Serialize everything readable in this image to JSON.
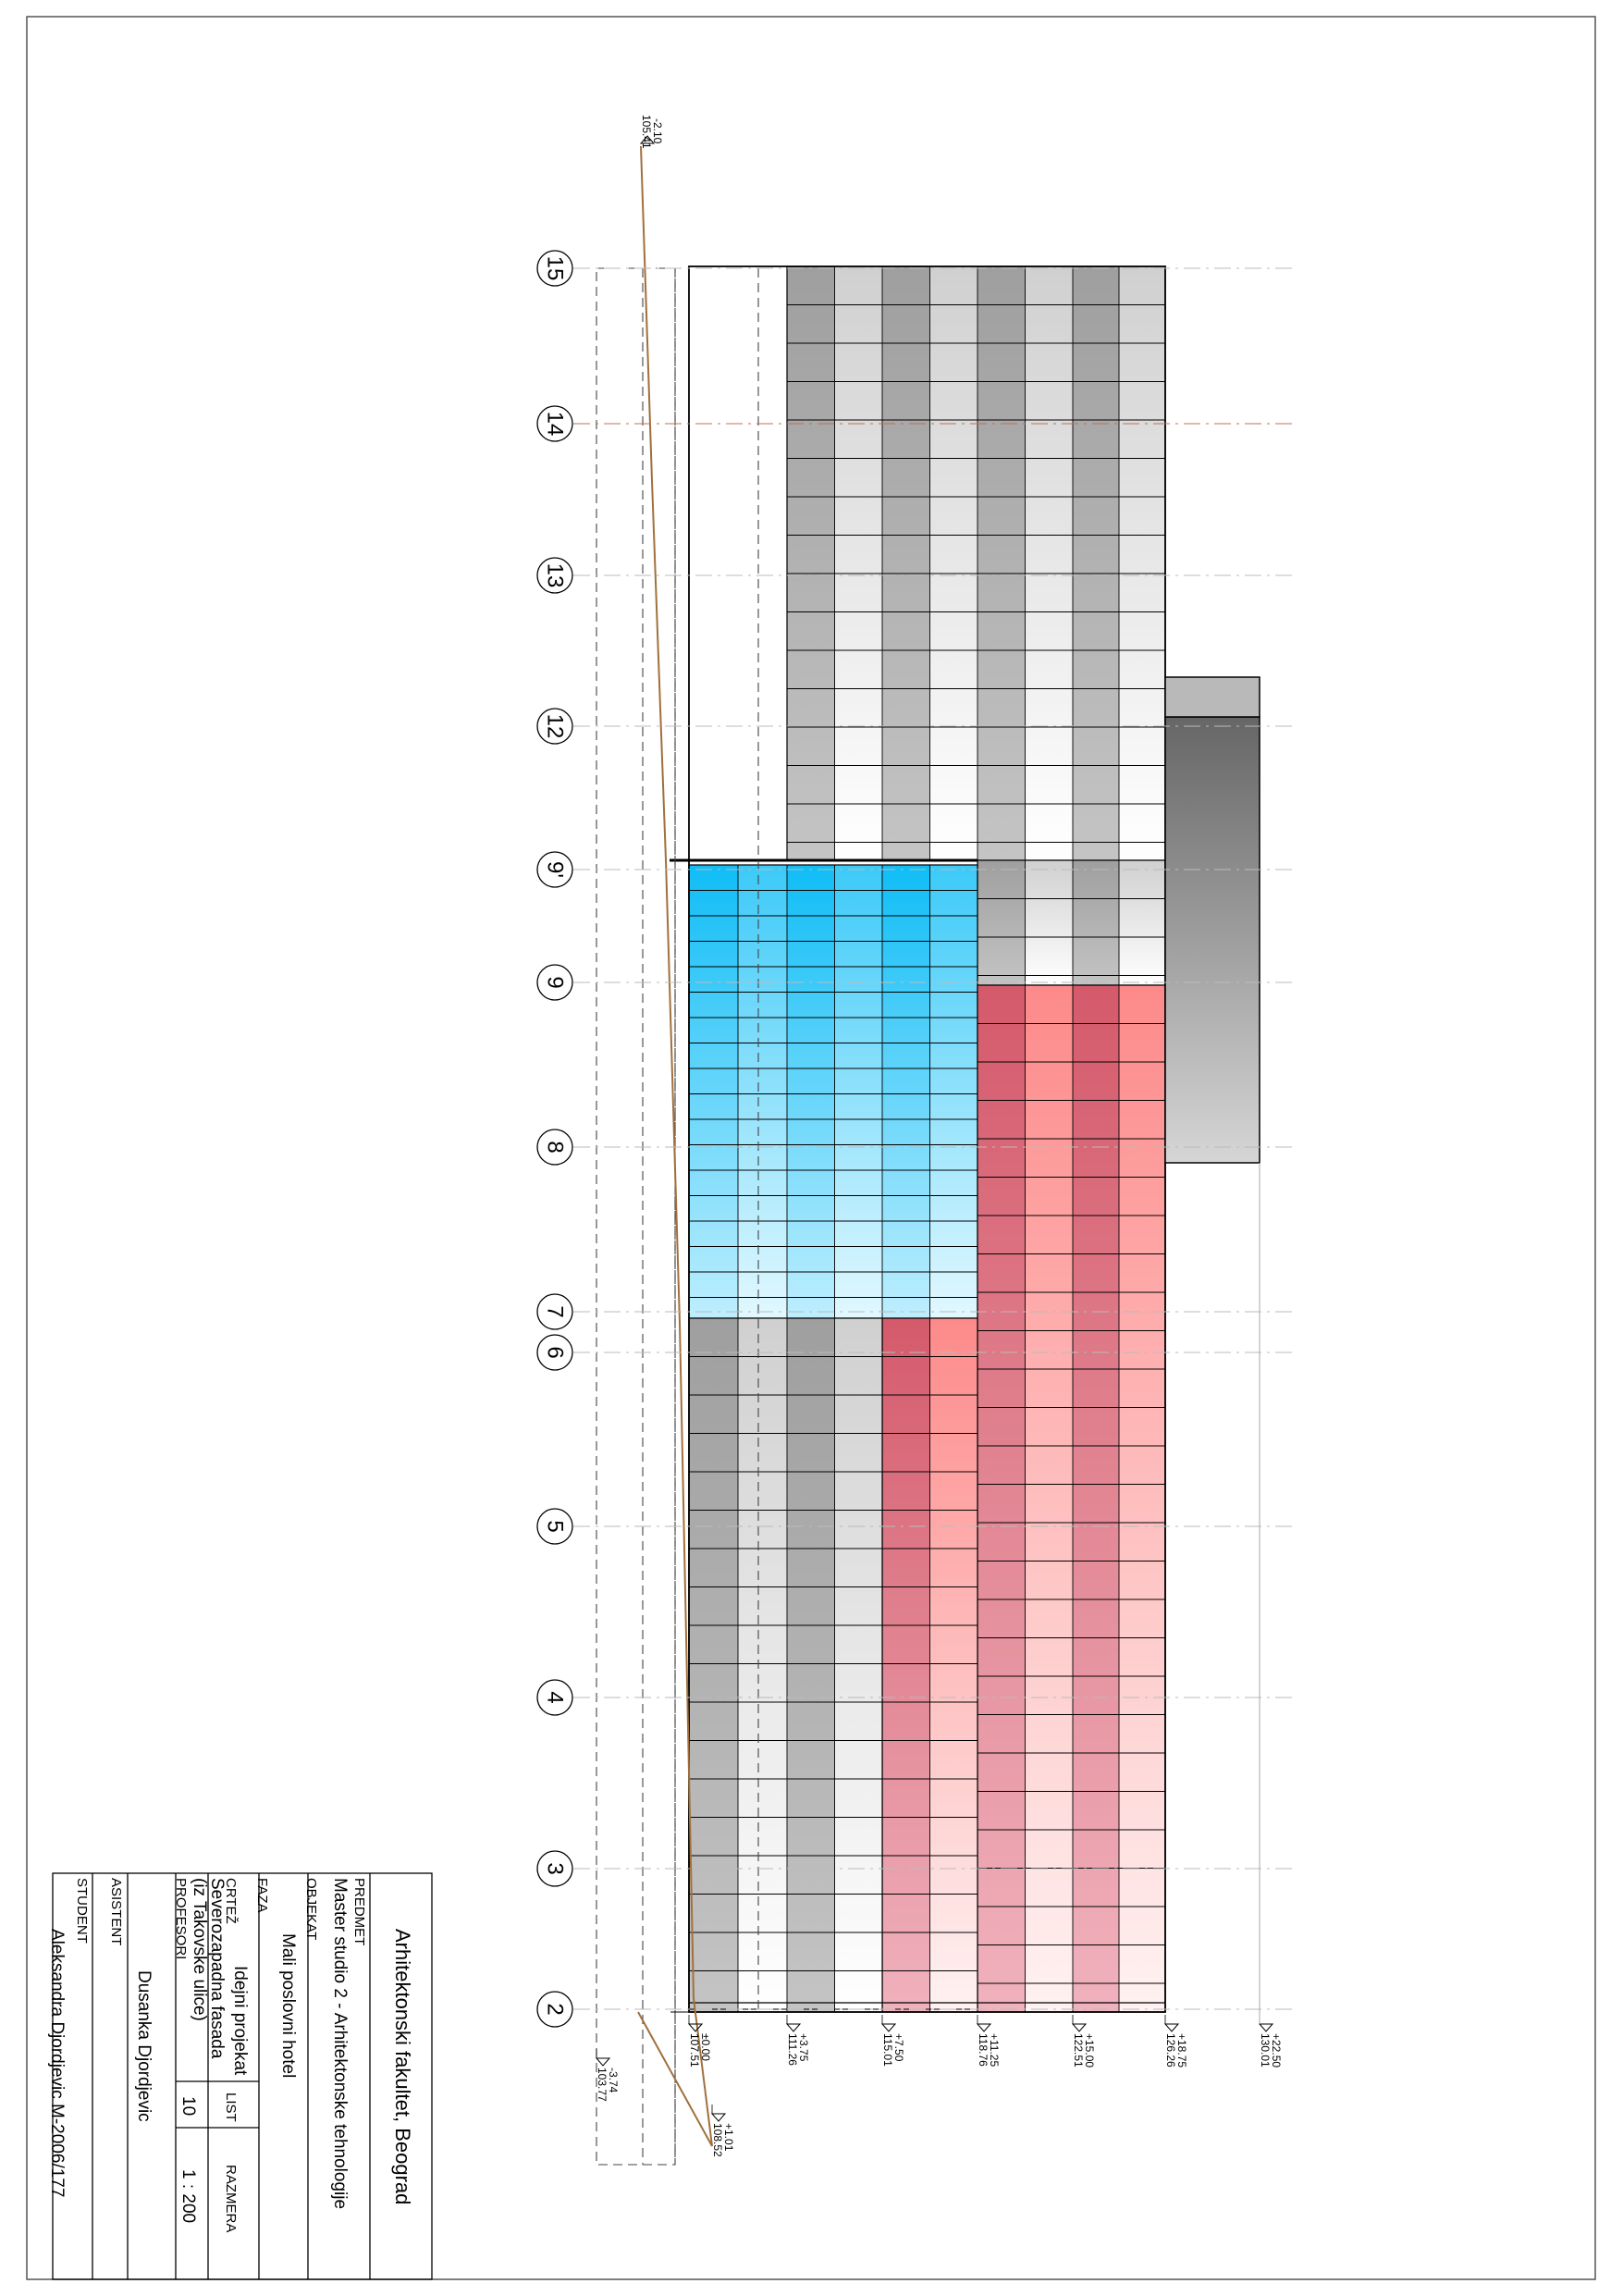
{
  "title_block": {
    "institution": "Arhitektonski fakultet, Beograd",
    "predmet_label": "PREDMET",
    "predmet": "Master studio 2 - Arhitektonske tehnologije",
    "objekat_label": "OBJEKAT",
    "objekat": "Mali poslovni hotel",
    "faza_label": "FAZA",
    "faza": "Idejni projekat",
    "crtez_label": "CRTEŽ",
    "crtez_line1": "Severozapadna fasada",
    "crtez_line2": "(iz Takovske ulice)",
    "list_label": "LIST",
    "list": "10",
    "razmera_label": "RAZMERA",
    "razmera": "1 : 200",
    "profesori_label": "PROFESORI",
    "profesori": "Dusanka Djordjevic",
    "asistent_label": "ASISTENT",
    "asistent": "",
    "student_label": "STUDENT",
    "student": "Aleksandra Djordjevic  M-2006/177"
  },
  "grid_axes": [
    "15",
    "14",
    "13",
    "12",
    "9'",
    "9",
    "8",
    "7",
    "6",
    "5",
    "4",
    "3",
    "2"
  ],
  "levels": [
    {
      "rel": "-3.74",
      "abs": "103.77"
    },
    {
      "rel": "±0.00",
      "abs": "107.51"
    },
    {
      "rel": "+1.01",
      "abs": "108.52"
    },
    {
      "rel": "+3.75",
      "abs": "111.26"
    },
    {
      "rel": "+7.50",
      "abs": "115.01"
    },
    {
      "rel": "+11.25",
      "abs": "118.76"
    },
    {
      "rel": "+15.00",
      "abs": "122.51"
    },
    {
      "rel": "+18.75",
      "abs": "126.26"
    },
    {
      "rel": "+22.50",
      "abs": "130.01"
    }
  ],
  "terrain_mark": {
    "rel": "-2.10",
    "abs": "105.41"
  },
  "colors": {
    "grey_dark": "#a3a3a3",
    "grey_light": "#d6d6d6",
    "blue": "#1ec3f7",
    "red": "#d6606f",
    "pink": "#fc8c8c",
    "tower": "#6e6e6e",
    "terrain": "#a0703c",
    "axis": "#c07050"
  }
}
